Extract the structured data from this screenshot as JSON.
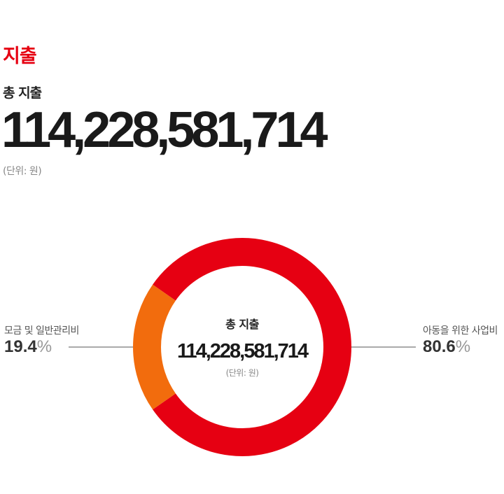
{
  "section_title": "지출",
  "total_label": "총 지출",
  "total_amount": "114,228,581,714",
  "unit_note": "(단위: 원)",
  "chart_data": {
    "type": "pie",
    "variant": "donut",
    "center_title": "총 지출",
    "center_amount": "114,228,581,714",
    "center_unit": "(단위: 원)",
    "slices": [
      {
        "label": "아동을 위한 사업비",
        "value": 80.6,
        "value_text": "80.6",
        "unit": "%",
        "color": "#e60012"
      },
      {
        "label": "모금 및 일반관리비",
        "value": 19.4,
        "value_text": "19.4",
        "unit": "%",
        "color": "#f26c0d"
      }
    ]
  }
}
